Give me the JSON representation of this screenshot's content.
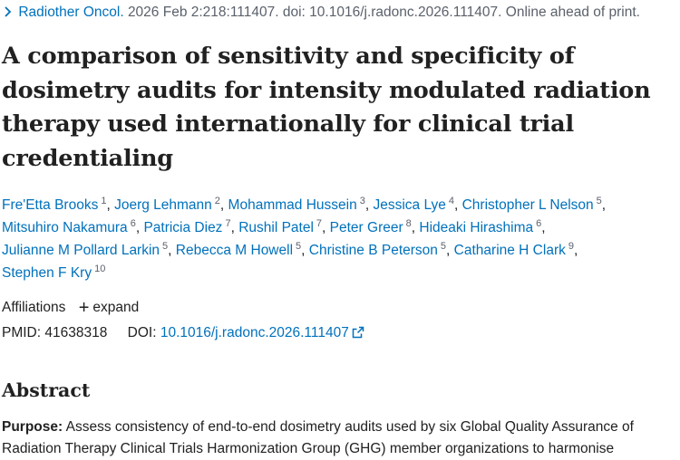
{
  "citation": {
    "journal": "Radiother Oncol.",
    "details": "2026 Feb 2:218:111407. doi: 10.1016/j.radonc.2026.111407. Online ahead of print."
  },
  "title": "A comparison of sensitivity and specificity of dosimetry audits for intensity modulated radiation therapy used internationally for clinical trial credentialing",
  "authors": [
    {
      "name": "Fre'Etta Brooks",
      "aff": "1"
    },
    {
      "name": "Joerg Lehmann",
      "aff": "2"
    },
    {
      "name": "Mohammad Hussein",
      "aff": "3"
    },
    {
      "name": "Jessica Lye",
      "aff": "4"
    },
    {
      "name": "Christopher L Nelson",
      "aff": "5"
    },
    {
      "name": "Mitsuhiro Nakamura",
      "aff": "6"
    },
    {
      "name": "Patricia Diez",
      "aff": "7"
    },
    {
      "name": "Rushil Patel",
      "aff": "7"
    },
    {
      "name": "Peter Greer",
      "aff": "8"
    },
    {
      "name": "Hideaki Hirashima",
      "aff": "6"
    },
    {
      "name": "Julianne M Pollard Larkin",
      "aff": "5"
    },
    {
      "name": "Rebecca M Howell",
      "aff": "5"
    },
    {
      "name": "Christine B Peterson",
      "aff": "5"
    },
    {
      "name": "Catharine H Clark",
      "aff": "9"
    },
    {
      "name": "Stephen F Kry",
      "aff": "10"
    }
  ],
  "affiliations": {
    "label": "Affiliations",
    "expand_label": "expand"
  },
  "ids": {
    "pmid_label": "PMID:",
    "pmid": "41638318",
    "doi_label": "DOI:",
    "doi": "10.1016/j.radonc.2026.111407"
  },
  "abstract": {
    "heading": "Abstract",
    "purpose_label": "Purpose:",
    "purpose_text": "Assess consistency of end-to-end dosimetry audits used by six Global Quality Assurance of Radiation Therapy Clinical Trials Harmonization Group (GHG) member organizations to harmonise"
  },
  "icons": {
    "chevron": "chevron-right-icon",
    "plus": "plus-icon",
    "external": "external-link-icon"
  },
  "colors": {
    "link": "#0071bc",
    "text": "#212121",
    "muted": "#5b616b"
  }
}
